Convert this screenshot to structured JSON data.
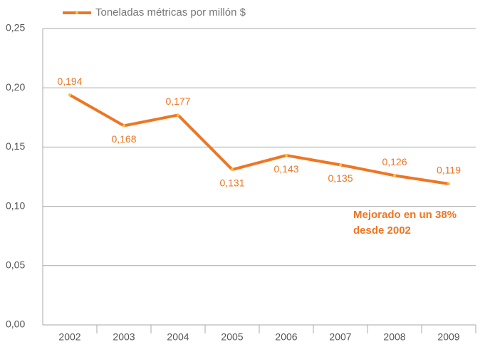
{
  "chart_data": {
    "type": "line",
    "categories": [
      "2002",
      "2003",
      "2004",
      "2005",
      "2006",
      "2007",
      "2008",
      "2009"
    ],
    "series": [
      {
        "name": "Toneladas métricas por millón $",
        "color": "#ee7623",
        "values": [
          0.194,
          0.168,
          0.177,
          0.131,
          0.143,
          0.135,
          0.126,
          0.119
        ],
        "value_labels": [
          "0,194",
          "0,168",
          "0,177",
          "0,131",
          "0,143",
          "0,135",
          "0,126",
          "0,119"
        ]
      }
    ],
    "ylim": [
      0,
      0.25
    ],
    "yticks": [
      {
        "value": 0,
        "label": "0,00"
      },
      {
        "value": 0.05,
        "label": "0,05"
      },
      {
        "value": 0.1,
        "label": "0,10"
      },
      {
        "value": 0.15,
        "label": "0,15"
      },
      {
        "value": 0.2,
        "label": "0,20"
      },
      {
        "value": 0.25,
        "label": "0,25"
      }
    ],
    "grid": true,
    "legend": "top-left",
    "annotation": [
      "Mejorado en un 38%",
      "desde 2002"
    ]
  }
}
